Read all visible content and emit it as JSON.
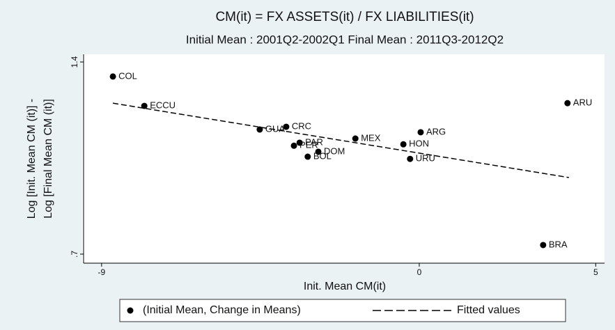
{
  "chart_data": {
    "type": "scatter",
    "title": "CM(it) = FX ASSETS(it) / FX LIABILITIES(it)",
    "subtitle": "Initial Mean : 2001Q2-2002Q1   Final Mean : 2011Q3-2012Q2",
    "x_label": "Init. Mean CM(it)",
    "y_label": [
      "Log [Init. Mean CM (it)] -",
      "Log [Final Mean CM (it)]"
    ],
    "xlim": [
      -9.55,
      5.25
    ],
    "ylim": [
      0.667,
      1.428
    ],
    "xticks": [
      -9,
      0,
      5
    ],
    "yticks": [
      {
        "value": 0.7,
        "label": ".7"
      },
      1.4
    ],
    "series": [
      {
        "name": "(Initial Mean, Change in Means)",
        "color": "#000000",
        "style": "markers",
        "labels": [
          "COL",
          "ECCU",
          "CRC",
          "GUA",
          "PAR",
          "PER",
          "DOM",
          "BOL",
          "MEX",
          "HON",
          "URU",
          "ARG",
          "ARU",
          "BRA"
        ],
        "x": [
          -8.68,
          -7.79,
          -3.77,
          -4.52,
          -3.39,
          -3.55,
          -2.86,
          -3.16,
          -1.81,
          -0.45,
          -0.26,
          0.04,
          4.2,
          3.51
        ],
        "values": [
          1.347,
          1.24,
          1.164,
          1.154,
          1.106,
          1.095,
          1.073,
          1.055,
          1.121,
          1.1,
          1.047,
          1.144,
          1.25,
          0.733
        ]
      },
      {
        "name": "Fitted values",
        "color": "#000000",
        "style": "dashed",
        "x": [
          -8.68,
          4.24
        ],
        "values": [
          1.25,
          0.979
        ]
      }
    ]
  }
}
